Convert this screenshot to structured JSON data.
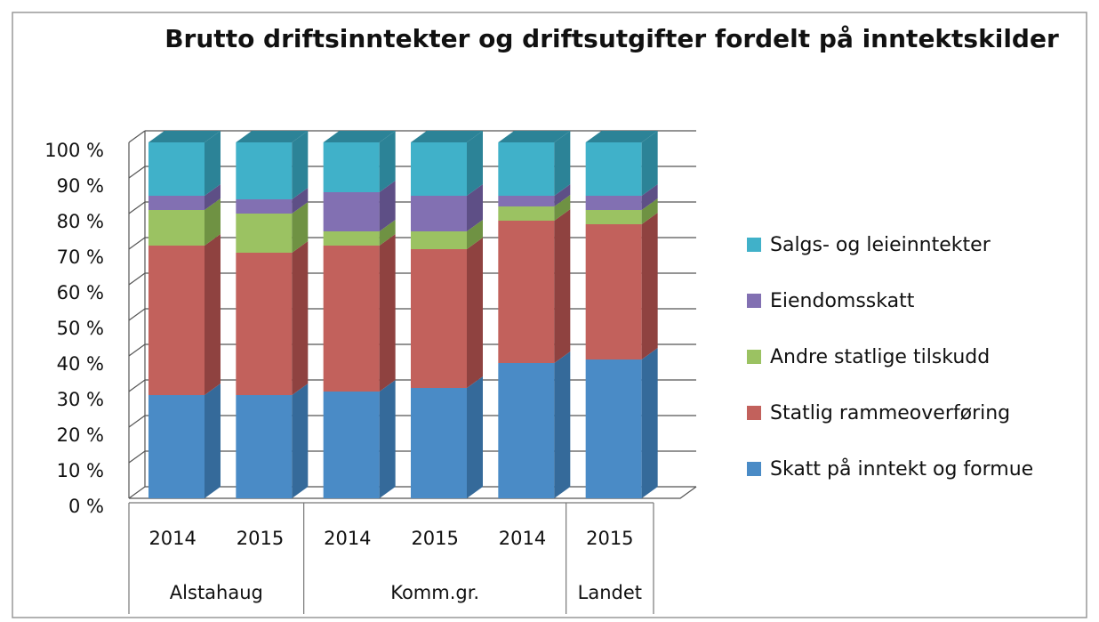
{
  "chart_data": {
    "type": "bar3d_stacked",
    "title": "Brutto driftsinntekter og driftsutgifter fordelt på inntektskilder",
    "groups": [
      {
        "name": "Alstahaug",
        "categories": [
          "2014",
          "2015"
        ]
      },
      {
        "name": "Komm.gr.",
        "categories": [
          "2014",
          "2015",
          "2014"
        ]
      },
      {
        "name": "Landet",
        "categories": [
          "2015"
        ]
      }
    ],
    "series": [
      {
        "name": "Skatt på inntekt og formue",
        "color": "#4a8bc6",
        "side": "#356a9a",
        "values": [
          29,
          29,
          30,
          31,
          38,
          39
        ]
      },
      {
        "name": "Statlig rammeoverføring",
        "color": "#c2615c",
        "side": "#8f4240",
        "values": [
          42,
          40,
          41,
          39,
          40,
          38
        ]
      },
      {
        "name": "Andre statlige tilskudd",
        "color": "#9bc262",
        "side": "#6f9243",
        "values": [
          10,
          11,
          4,
          5,
          4,
          4
        ]
      },
      {
        "name": "Eiendomsskatt",
        "color": "#8270b2",
        "side": "#5e4f86",
        "values": [
          4,
          4,
          11,
          10,
          3,
          4
        ]
      },
      {
        "name": "Salgs- og leieinntekter",
        "color": "#40b1c9",
        "side": "#2c8397",
        "values": [
          15,
          16,
          14,
          15,
          15,
          15
        ]
      }
    ],
    "ylim": [
      0,
      100
    ],
    "yticks": [
      {
        "value": 0,
        "label": "0 %"
      },
      {
        "value": 10,
        "label": "10 %"
      },
      {
        "value": 20,
        "label": "20 %"
      },
      {
        "value": 30,
        "label": "30 %"
      },
      {
        "value": 40,
        "label": "40 %"
      },
      {
        "value": 50,
        "label": "50 %"
      },
      {
        "value": 60,
        "label": "60 %"
      },
      {
        "value": 70,
        "label": "70 %"
      },
      {
        "value": 80,
        "label": "80 %"
      },
      {
        "value": 90,
        "label": "90 %"
      },
      {
        "value": 100,
        "label": "100 %"
      }
    ],
    "grid": true,
    "legend": "right"
  }
}
